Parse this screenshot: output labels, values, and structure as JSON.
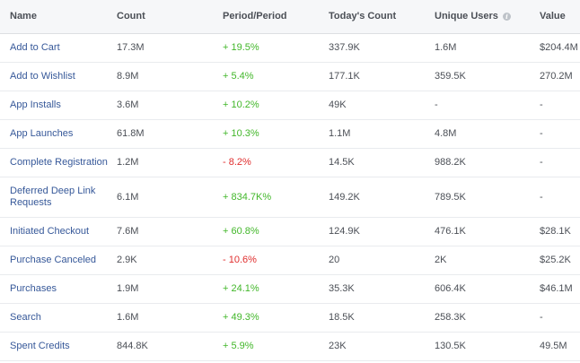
{
  "header": {
    "name": "Name",
    "count": "Count",
    "period": "Period/Period",
    "today": "Today's Count",
    "unique": "Unique Users",
    "value": "Value",
    "unique_info_icon": "i"
  },
  "colors": {
    "positive": "#42b72a",
    "negative": "#e02e2e",
    "link": "#365899"
  },
  "rows": [
    {
      "name": "Add to Cart",
      "count": "17.3M",
      "period": "+ 19.5%",
      "trend": "positive",
      "today": "337.9K",
      "unique": "1.6M",
      "value": "$204.4M"
    },
    {
      "name": "Add to Wishlist",
      "count": "8.9M",
      "period": "+ 5.4%",
      "trend": "positive",
      "today": "177.1K",
      "unique": "359.5K",
      "value": "270.2M"
    },
    {
      "name": "App Installs",
      "count": "3.6M",
      "period": "+ 10.2%",
      "trend": "positive",
      "today": "49K",
      "unique": "-",
      "value": "-"
    },
    {
      "name": "App Launches",
      "count": "61.8M",
      "period": "+ 10.3%",
      "trend": "positive",
      "today": "1.1M",
      "unique": "4.8M",
      "value": "-"
    },
    {
      "name": "Complete Registration",
      "count": "1.2M",
      "period": "- 8.2%",
      "trend": "negative",
      "today": "14.5K",
      "unique": "988.2K",
      "value": "-"
    },
    {
      "name": "Deferred Deep Link Requests",
      "count": "6.1M",
      "period": "+ 834.7K%",
      "trend": "positive",
      "today": "149.2K",
      "unique": "789.5K",
      "value": "-"
    },
    {
      "name": "Initiated Checkout",
      "count": "7.6M",
      "period": "+ 60.8%",
      "trend": "positive",
      "today": "124.9K",
      "unique": "476.1K",
      "value": "$28.1K"
    },
    {
      "name": "Purchase Canceled",
      "count": "2.9K",
      "period": "- 10.6%",
      "trend": "negative",
      "today": "20",
      "unique": "2K",
      "value": "$25.2K"
    },
    {
      "name": "Purchases",
      "count": "1.9M",
      "period": "+ 24.1%",
      "trend": "positive",
      "today": "35.3K",
      "unique": "606.4K",
      "value": "$46.1M"
    },
    {
      "name": "Search",
      "count": "1.6M",
      "period": "+ 49.3%",
      "trend": "positive",
      "today": "18.5K",
      "unique": "258.3K",
      "value": "-"
    },
    {
      "name": "Spent Credits",
      "count": "844.8K",
      "period": "+ 5.9%",
      "trend": "positive",
      "today": "23K",
      "unique": "130.5K",
      "value": "49.5M"
    }
  ]
}
